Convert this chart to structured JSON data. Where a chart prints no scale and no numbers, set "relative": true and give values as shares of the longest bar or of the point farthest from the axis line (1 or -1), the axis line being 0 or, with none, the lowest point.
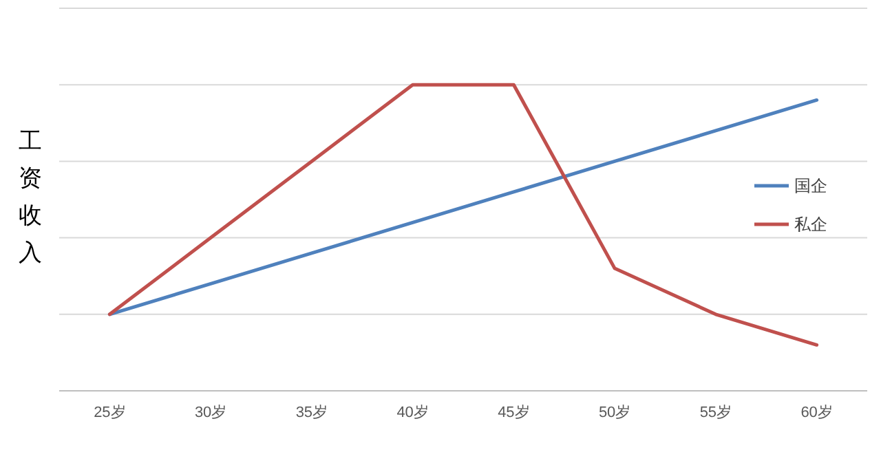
{
  "chart_data": {
    "type": "line",
    "ylabel": "工资收入",
    "relative": true,
    "grid": "y",
    "legend": "right",
    "line_style": "solid",
    "marker": "none",
    "categories": [
      "25岁",
      "30岁",
      "35岁",
      "40岁",
      "45岁",
      "50岁",
      "55岁",
      "60岁"
    ],
    "series": [
      {
        "name": "国企",
        "color": "#4f81bd",
        "values": [
          0.25,
          0.35,
          0.45,
          0.55,
          0.65,
          0.75,
          0.85,
          0.95
        ]
      },
      {
        "name": "私企",
        "color": "#c0504d",
        "values": [
          0.25,
          0.5,
          0.75,
          1,
          1,
          0.4,
          0.25,
          0.15
        ]
      }
    ]
  }
}
